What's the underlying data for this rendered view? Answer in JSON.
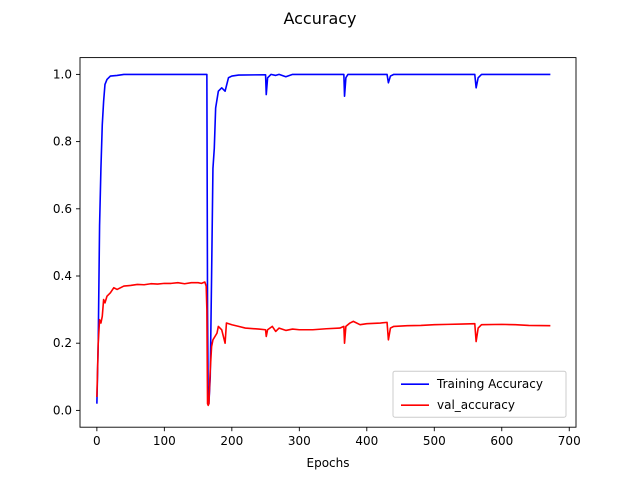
{
  "chart_data": {
    "type": "line",
    "title": "Accuracy",
    "xlabel": "Epochs",
    "ylabel": "",
    "xlim": [
      -25,
      710
    ],
    "ylim": [
      -0.05,
      1.05
    ],
    "xticks": [
      0,
      100,
      200,
      300,
      400,
      500,
      600,
      700
    ],
    "yticks": [
      0.0,
      0.2,
      0.4,
      0.6,
      0.8,
      1.0
    ],
    "grid": false,
    "legend_position": "lower-right",
    "series": [
      {
        "name": "Training Accuracy",
        "color": "#0000ff",
        "points": [
          [
            0,
            0.02
          ],
          [
            2,
            0.2
          ],
          [
            4,
            0.55
          ],
          [
            6,
            0.72
          ],
          [
            8,
            0.85
          ],
          [
            10,
            0.92
          ],
          [
            12,
            0.97
          ],
          [
            15,
            0.985
          ],
          [
            20,
            0.995
          ],
          [
            30,
            0.997
          ],
          [
            40,
            1.0
          ],
          [
            100,
            1.0
          ],
          [
            150,
            1.0
          ],
          [
            163,
            1.0
          ],
          [
            164,
            0.3
          ],
          [
            165,
            0.03
          ],
          [
            166,
            0.02
          ],
          [
            168,
            0.1
          ],
          [
            170,
            0.4
          ],
          [
            172,
            0.72
          ],
          [
            174,
            0.78
          ],
          [
            176,
            0.9
          ],
          [
            180,
            0.95
          ],
          [
            185,
            0.96
          ],
          [
            190,
            0.95
          ],
          [
            195,
            0.99
          ],
          [
            200,
            0.995
          ],
          [
            210,
            0.998
          ],
          [
            250,
            0.999
          ],
          [
            251,
            0.94
          ],
          [
            253,
            0.99
          ],
          [
            258,
            1.0
          ],
          [
            265,
            0.997
          ],
          [
            270,
            1.0
          ],
          [
            280,
            0.993
          ],
          [
            290,
            1.0
          ],
          [
            366,
            1.0
          ],
          [
            367,
            0.935
          ],
          [
            369,
            0.99
          ],
          [
            372,
            1.0
          ],
          [
            430,
            1.0
          ],
          [
            432,
            0.975
          ],
          [
            435,
            0.995
          ],
          [
            440,
            1.0
          ],
          [
            560,
            1.0
          ],
          [
            562,
            0.96
          ],
          [
            565,
            0.99
          ],
          [
            570,
            1.0
          ],
          [
            672,
            1.0
          ]
        ]
      },
      {
        "name": "val_accuracy",
        "color": "#ff0000",
        "points": [
          [
            0,
            0.04
          ],
          [
            2,
            0.2
          ],
          [
            4,
            0.27
          ],
          [
            6,
            0.26
          ],
          [
            8,
            0.28
          ],
          [
            10,
            0.33
          ],
          [
            12,
            0.32
          ],
          [
            15,
            0.34
          ],
          [
            20,
            0.35
          ],
          [
            25,
            0.365
          ],
          [
            30,
            0.36
          ],
          [
            40,
            0.37
          ],
          [
            50,
            0.372
          ],
          [
            60,
            0.375
          ],
          [
            70,
            0.374
          ],
          [
            80,
            0.377
          ],
          [
            90,
            0.376
          ],
          [
            100,
            0.378
          ],
          [
            110,
            0.378
          ],
          [
            120,
            0.38
          ],
          [
            130,
            0.377
          ],
          [
            140,
            0.38
          ],
          [
            150,
            0.38
          ],
          [
            155,
            0.378
          ],
          [
            160,
            0.382
          ],
          [
            162,
            0.37
          ],
          [
            163,
            0.3
          ],
          [
            164,
            0.02
          ],
          [
            165,
            0.015
          ],
          [
            166,
            0.02
          ],
          [
            168,
            0.12
          ],
          [
            170,
            0.19
          ],
          [
            172,
            0.21
          ],
          [
            175,
            0.22
          ],
          [
            178,
            0.23
          ],
          [
            180,
            0.25
          ],
          [
            185,
            0.24
          ],
          [
            190,
            0.2
          ],
          [
            192,
            0.26
          ],
          [
            200,
            0.255
          ],
          [
            210,
            0.25
          ],
          [
            220,
            0.245
          ],
          [
            240,
            0.242
          ],
          [
            250,
            0.24
          ],
          [
            251,
            0.22
          ],
          [
            253,
            0.24
          ],
          [
            260,
            0.25
          ],
          [
            265,
            0.235
          ],
          [
            270,
            0.245
          ],
          [
            280,
            0.238
          ],
          [
            290,
            0.242
          ],
          [
            300,
            0.24
          ],
          [
            320,
            0.24
          ],
          [
            340,
            0.243
          ],
          [
            360,
            0.245
          ],
          [
            366,
            0.25
          ],
          [
            367,
            0.2
          ],
          [
            369,
            0.25
          ],
          [
            375,
            0.26
          ],
          [
            380,
            0.265
          ],
          [
            390,
            0.255
          ],
          [
            400,
            0.258
          ],
          [
            420,
            0.26
          ],
          [
            430,
            0.262
          ],
          [
            432,
            0.21
          ],
          [
            435,
            0.245
          ],
          [
            440,
            0.25
          ],
          [
            460,
            0.252
          ],
          [
            480,
            0.253
          ],
          [
            500,
            0.255
          ],
          [
            520,
            0.256
          ],
          [
            540,
            0.257
          ],
          [
            560,
            0.258
          ],
          [
            562,
            0.205
          ],
          [
            565,
            0.245
          ],
          [
            570,
            0.255
          ],
          [
            600,
            0.256
          ],
          [
            620,
            0.255
          ],
          [
            640,
            0.253
          ],
          [
            672,
            0.252
          ]
        ]
      }
    ]
  }
}
